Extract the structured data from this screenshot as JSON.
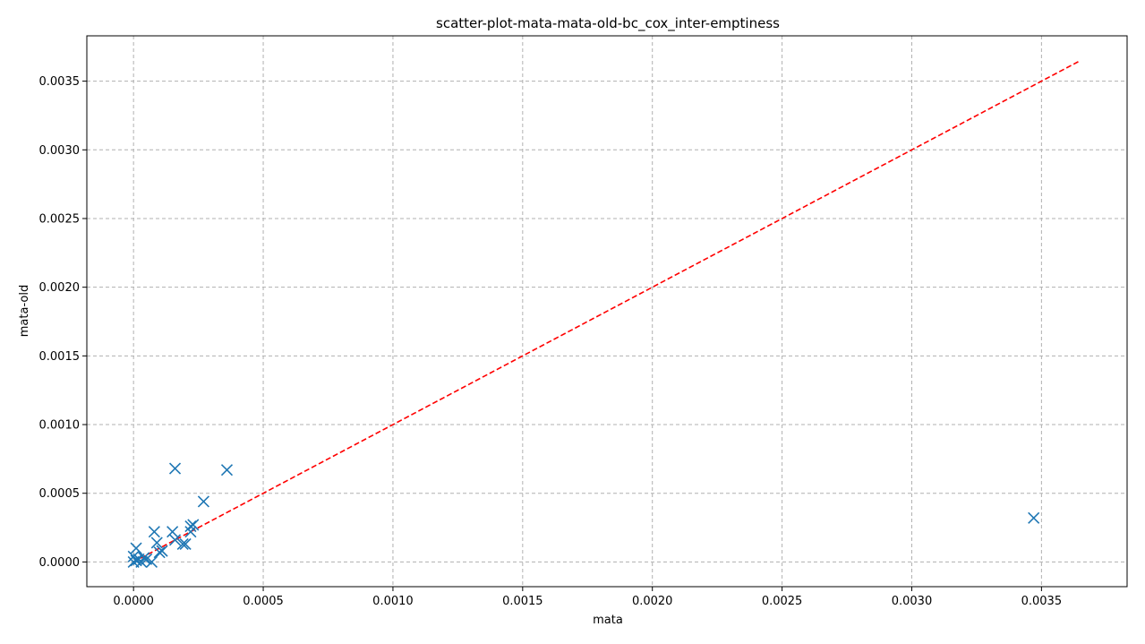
{
  "chart_data": {
    "type": "scatter",
    "title": "scatter-plot-mata-mata-old-bc_cox_inter-emptiness",
    "xlabel": "mata",
    "ylabel": "mata-old",
    "xlim": [
      -0.00018,
      0.00383
    ],
    "ylim": [
      -0.00018,
      0.00383
    ],
    "xticks": [
      0.0,
      0.0005,
      0.001,
      0.0015,
      0.002,
      0.0025,
      0.003,
      0.0035
    ],
    "yticks": [
      0.0,
      0.0005,
      0.001,
      0.0015,
      0.002,
      0.0025,
      0.003,
      0.0035
    ],
    "xtick_labels": [
      "0.0000",
      "0.0005",
      "0.0010",
      "0.0015",
      "0.0020",
      "0.0025",
      "0.0030",
      "0.0035"
    ],
    "ytick_labels": [
      "0.0000",
      "0.0005",
      "0.0010",
      "0.0015",
      "0.0020",
      "0.0025",
      "0.0030",
      "0.0035"
    ],
    "grid": true,
    "marker": "x",
    "marker_color": "#1f77b4",
    "reference_line": {
      "style": "dashed",
      "color": "#ff0000",
      "x": [
        0.0,
        0.00365
      ],
      "y": [
        0.0,
        0.00365
      ]
    },
    "series": [
      {
        "points": [
          {
            "x": 0.0,
            "y": 0.0
          },
          {
            "x": 1e-05,
            "y": 1e-05
          },
          {
            "x": 0.0,
            "y": 4e-05
          },
          {
            "x": 1e-05,
            "y": 0.0001
          },
          {
            "x": 2e-05,
            "y": 2e-05
          },
          {
            "x": 3e-05,
            "y": 0.0
          },
          {
            "x": 4e-05,
            "y": 3e-05
          },
          {
            "x": 5e-05,
            "y": 2e-05
          },
          {
            "x": 7e-05,
            "y": 0.0
          },
          {
            "x": 8e-05,
            "y": 0.00022
          },
          {
            "x": 9e-05,
            "y": 0.00014
          },
          {
            "x": 0.0001,
            "y": 7e-05
          },
          {
            "x": 0.00011,
            "y": 8e-05
          },
          {
            "x": 0.00015,
            "y": 0.00022
          },
          {
            "x": 0.00016,
            "y": 0.00016
          },
          {
            "x": 0.00016,
            "y": 0.00068
          },
          {
            "x": 0.00019,
            "y": 0.00013
          },
          {
            "x": 0.0002,
            "y": 0.00013
          },
          {
            "x": 0.00022,
            "y": 0.00022
          },
          {
            "x": 0.00022,
            "y": 0.00026
          },
          {
            "x": 0.00023,
            "y": 0.00027
          },
          {
            "x": 0.00027,
            "y": 0.00044
          },
          {
            "x": 0.00036,
            "y": 0.00067
          },
          {
            "x": 0.00347,
            "y": 0.00032
          }
        ]
      }
    ]
  }
}
